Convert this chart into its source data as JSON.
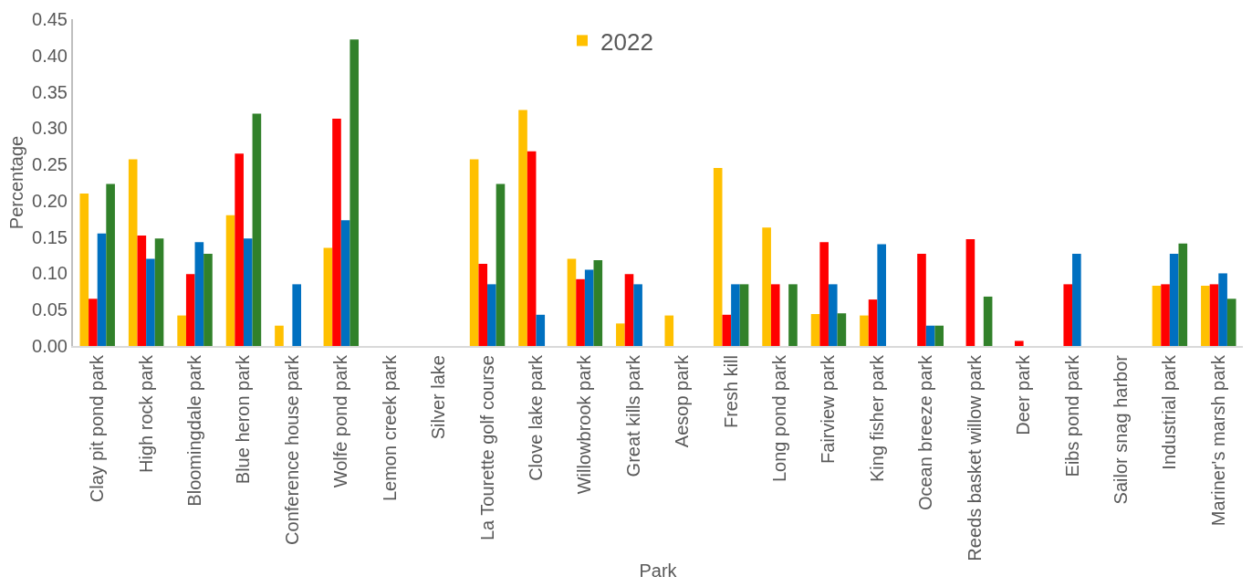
{
  "chart_data": {
    "type": "bar",
    "xlabel": "Park",
    "ylabel": "Percentage",
    "categories": [
      "Clay pit pond park",
      "High rock park",
      "Bloomingdale park",
      "Blue heron park",
      "Conference house park",
      "Wolfe pond park",
      "Lemon creek park",
      "Silver lake",
      "La Tourette golf course",
      "Clove lake park",
      "Willowbrook park",
      "Great kills park",
      "Aesop park",
      "Fresh kill",
      "Long pond park",
      "Fairview park",
      "King fisher park",
      "Ocean breeze park",
      "Reeds basket willow park",
      "Deer park",
      "Eibs pond park",
      "Sailor snag harbor",
      "Industrial park",
      "Mariner's marsh park"
    ],
    "series": [
      {
        "name": "2022",
        "color": "#ffc000",
        "values": [
          0.21,
          0.257,
          0.042,
          0.18,
          0.028,
          0.135,
          0,
          0,
          0.257,
          0.325,
          0.12,
          0.031,
          0.042,
          0.245,
          0.163,
          0.044,
          0.042,
          0,
          0,
          0,
          0,
          0,
          0.083,
          0.083
        ]
      },
      {
        "color": "#ff0000",
        "values": [
          0.065,
          0.152,
          0.099,
          0.265,
          0,
          0.313,
          0,
          0,
          0.113,
          0.268,
          0.092,
          0.099,
          0,
          0.043,
          0.085,
          0.143,
          0.064,
          0.127,
          0.147,
          0.007,
          0.085,
          0,
          0.085,
          0.085
        ]
      },
      {
        "color": "#0070c0",
        "values": [
          0.155,
          0.12,
          0.143,
          0.148,
          0.085,
          0.173,
          0,
          0,
          0.085,
          0.043,
          0.105,
          0.085,
          0,
          0.085,
          0,
          0.085,
          0.14,
          0.028,
          0,
          0,
          0.127,
          0,
          0.127,
          0.1
        ]
      },
      {
        "color": "#31812a",
        "values": [
          0.223,
          0.148,
          0.127,
          0.32,
          0,
          0.422,
          0,
          0,
          0.223,
          0,
          0.118,
          0,
          0,
          0.085,
          0.085,
          0.045,
          0,
          0.028,
          0.068,
          0,
          0,
          0,
          0.141,
          0.065
        ]
      }
    ],
    "ylim": [
      0,
      0.45
    ],
    "yticks": [
      {
        "value": 0,
        "label": "0.00"
      },
      {
        "value": 0.05,
        "label": "0.05"
      },
      {
        "value": 0.1,
        "label": "0.10"
      },
      {
        "value": 0.15,
        "label": "0.15"
      },
      {
        "value": 0.2,
        "label": "0.20"
      },
      {
        "value": 0.25,
        "label": "0.25"
      },
      {
        "value": 0.3,
        "label": "0.30"
      },
      {
        "value": 0.35,
        "label": "0.35"
      },
      {
        "value": 0.4,
        "label": "0.40"
      },
      {
        "value": 0.45,
        "label": "0.45"
      }
    ],
    "legend": "top"
  }
}
